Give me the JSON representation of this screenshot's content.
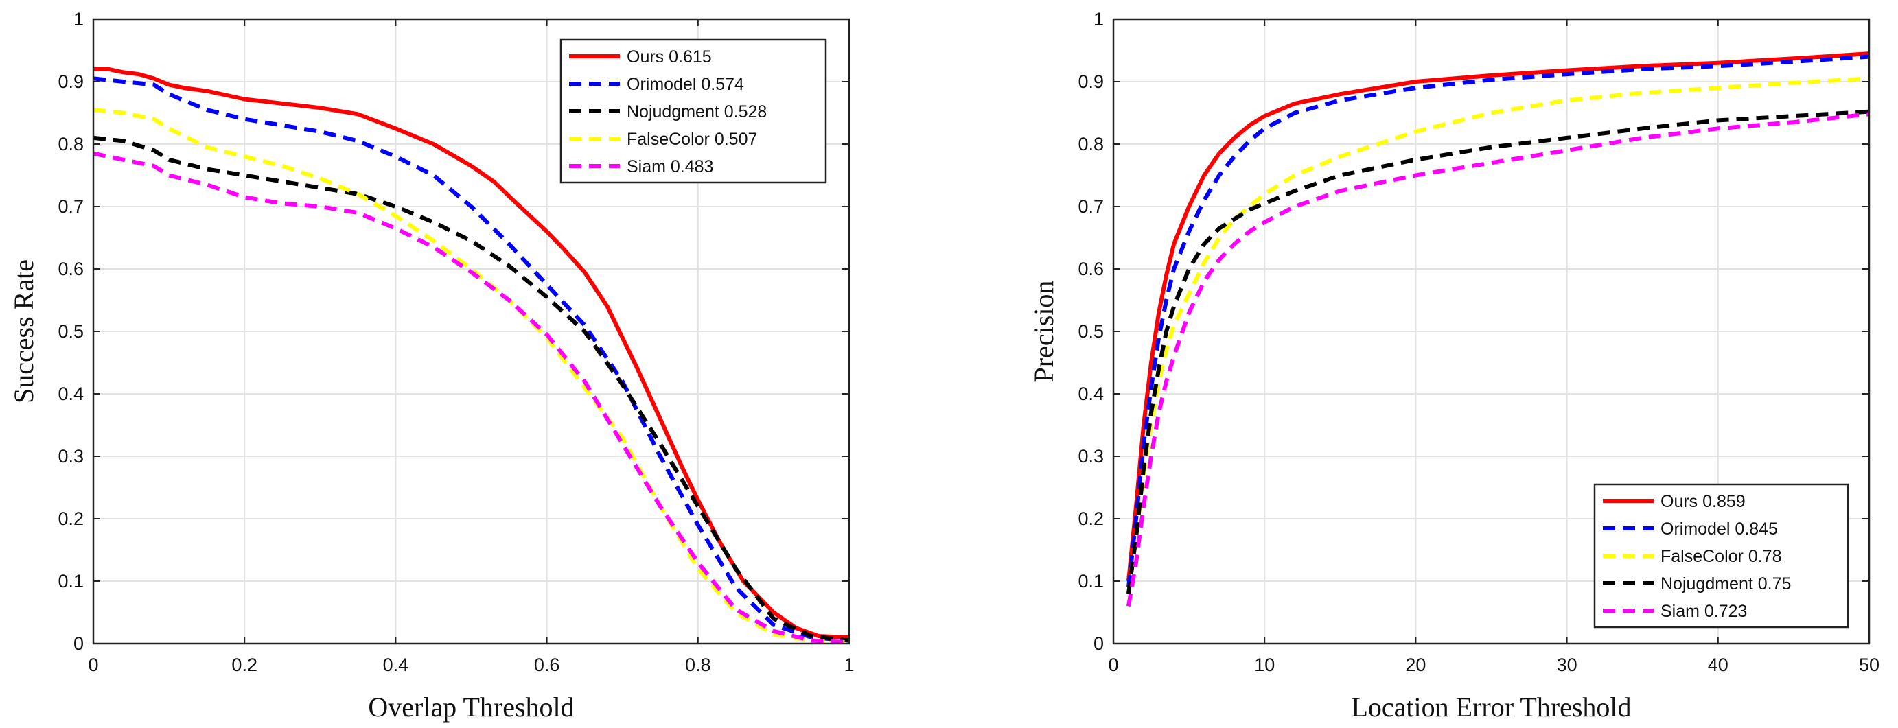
{
  "chart_data": [
    {
      "type": "line",
      "title": "",
      "xlabel": "Overlap Threshold",
      "ylabel": "Success Rate",
      "xlim": [
        0,
        1
      ],
      "ylim": [
        0,
        1
      ],
      "xticks": [
        0,
        0.2,
        0.4,
        0.6,
        0.8,
        1
      ],
      "xtick_labels": [
        "0",
        "0.2",
        "0.4",
        "0.6",
        "0.8",
        "1"
      ],
      "yticks": [
        0,
        0.1,
        0.2,
        0.3,
        0.4,
        0.5,
        0.6,
        0.7,
        0.8,
        0.9,
        1
      ],
      "ytick_labels": [
        "0",
        "0.1",
        "0.2",
        "0.3",
        "0.4",
        "0.5",
        "0.6",
        "0.7",
        "0.8",
        "0.9",
        "1"
      ],
      "grid": true,
      "legend_position": "top-right",
      "series": [
        {
          "name": "Ours",
          "score": "0.615",
          "color": "#ff0000",
          "dash": "solid",
          "x": [
            0,
            0.02,
            0.04,
            0.06,
            0.08,
            0.1,
            0.12,
            0.15,
            0.2,
            0.25,
            0.3,
            0.35,
            0.4,
            0.45,
            0.5,
            0.53,
            0.56,
            0.6,
            0.62,
            0.65,
            0.68,
            0.7,
            0.72,
            0.75,
            0.78,
            0.8,
            0.83,
            0.86,
            0.9,
            0.93,
            0.96,
            1.0
          ],
          "y": [
            0.92,
            0.92,
            0.915,
            0.912,
            0.905,
            0.895,
            0.89,
            0.885,
            0.872,
            0.865,
            0.858,
            0.848,
            0.825,
            0.8,
            0.765,
            0.74,
            0.705,
            0.66,
            0.635,
            0.595,
            0.54,
            0.49,
            0.44,
            0.36,
            0.28,
            0.23,
            0.16,
            0.1,
            0.05,
            0.025,
            0.012,
            0.01
          ]
        },
        {
          "name": "Orimodel",
          "score": "0.574",
          "color": "#0000ff",
          "dash": "dashed",
          "x": [
            0,
            0.04,
            0.08,
            0.1,
            0.15,
            0.2,
            0.25,
            0.3,
            0.35,
            0.4,
            0.45,
            0.5,
            0.55,
            0.6,
            0.65,
            0.7,
            0.75,
            0.8,
            0.85,
            0.9,
            0.95,
            1.0
          ],
          "y": [
            0.905,
            0.9,
            0.895,
            0.88,
            0.855,
            0.84,
            0.83,
            0.82,
            0.805,
            0.78,
            0.75,
            0.7,
            0.64,
            0.575,
            0.51,
            0.42,
            0.3,
            0.19,
            0.09,
            0.03,
            0.01,
            0.005
          ]
        },
        {
          "name": "Nojudgment",
          "score": "0.528",
          "color": "#000000",
          "dash": "dashed",
          "x": [
            0,
            0.04,
            0.08,
            0.1,
            0.15,
            0.2,
            0.25,
            0.3,
            0.35,
            0.4,
            0.45,
            0.5,
            0.55,
            0.6,
            0.65,
            0.7,
            0.75,
            0.8,
            0.85,
            0.9,
            0.95,
            1.0
          ],
          "y": [
            0.81,
            0.805,
            0.79,
            0.775,
            0.76,
            0.75,
            0.74,
            0.73,
            0.72,
            0.7,
            0.675,
            0.645,
            0.605,
            0.555,
            0.5,
            0.415,
            0.32,
            0.22,
            0.12,
            0.04,
            0.012,
            0.005
          ]
        },
        {
          "name": "FalseColor",
          "score": "0.507",
          "color": "#ffff00",
          "dash": "dashed",
          "x": [
            0,
            0.04,
            0.08,
            0.1,
            0.15,
            0.2,
            0.25,
            0.3,
            0.35,
            0.4,
            0.45,
            0.5,
            0.55,
            0.6,
            0.65,
            0.7,
            0.75,
            0.8,
            0.85,
            0.9,
            0.95,
            1.0
          ],
          "y": [
            0.855,
            0.85,
            0.84,
            0.825,
            0.795,
            0.78,
            0.765,
            0.745,
            0.72,
            0.685,
            0.645,
            0.6,
            0.55,
            0.49,
            0.41,
            0.33,
            0.22,
            0.12,
            0.05,
            0.015,
            0.005,
            0.002
          ]
        },
        {
          "name": "Siam",
          "score": "0.483",
          "color": "#ff00ff",
          "dash": "dashed",
          "x": [
            0,
            0.04,
            0.08,
            0.1,
            0.15,
            0.2,
            0.25,
            0.3,
            0.35,
            0.4,
            0.45,
            0.5,
            0.55,
            0.6,
            0.65,
            0.7,
            0.75,
            0.8,
            0.85,
            0.9,
            0.95,
            1.0
          ],
          "y": [
            0.785,
            0.775,
            0.765,
            0.75,
            0.735,
            0.715,
            0.705,
            0.7,
            0.69,
            0.665,
            0.635,
            0.595,
            0.55,
            0.495,
            0.42,
            0.32,
            0.22,
            0.13,
            0.055,
            0.02,
            0.005,
            0.002
          ]
        }
      ]
    },
    {
      "type": "line",
      "title": "",
      "xlabel": "Location Error Threshold",
      "ylabel": "Precision",
      "xlim": [
        0,
        50
      ],
      "ylim": [
        0,
        1
      ],
      "xticks": [
        0,
        10,
        20,
        30,
        40,
        50
      ],
      "xtick_labels": [
        "0",
        "10",
        "20",
        "30",
        "40",
        "50"
      ],
      "yticks": [
        0,
        0.1,
        0.2,
        0.3,
        0.4,
        0.5,
        0.6,
        0.7,
        0.8,
        0.9,
        1
      ],
      "ytick_labels": [
        "0",
        "0.1",
        "0.2",
        "0.3",
        "0.4",
        "0.5",
        "0.6",
        "0.7",
        "0.8",
        "0.9",
        "1"
      ],
      "grid": true,
      "legend_position": "bottom-right",
      "series": [
        {
          "name": "Ours",
          "score": "0.859",
          "color": "#ff0000",
          "dash": "solid",
          "x": [
            1,
            1.5,
            2,
            2.5,
            3,
            3.5,
            4,
            5,
            6,
            7,
            8,
            9,
            10,
            12,
            15,
            20,
            25,
            30,
            35,
            40,
            45,
            50
          ],
          "y": [
            0.1,
            0.22,
            0.35,
            0.45,
            0.53,
            0.59,
            0.64,
            0.7,
            0.75,
            0.785,
            0.81,
            0.83,
            0.845,
            0.865,
            0.88,
            0.9,
            0.91,
            0.918,
            0.925,
            0.93,
            0.937,
            0.945
          ]
        },
        {
          "name": "Orimodel",
          "score": "0.845",
          "color": "#0000ff",
          "dash": "dashed",
          "x": [
            1,
            1.5,
            2,
            2.5,
            3,
            3.5,
            4,
            5,
            6,
            7,
            8,
            9,
            10,
            12,
            15,
            20,
            25,
            30,
            35,
            40,
            45,
            50
          ],
          "y": [
            0.09,
            0.2,
            0.32,
            0.41,
            0.49,
            0.55,
            0.6,
            0.66,
            0.71,
            0.75,
            0.78,
            0.805,
            0.825,
            0.85,
            0.87,
            0.89,
            0.903,
            0.912,
            0.92,
            0.925,
            0.932,
            0.94
          ]
        },
        {
          "name": "FalseColor",
          "score": "0.78",
          "color": "#ffff00",
          "dash": "dashed",
          "x": [
            1,
            1.5,
            2,
            2.5,
            3,
            3.5,
            4,
            5,
            6,
            7,
            8,
            9,
            10,
            12,
            15,
            20,
            25,
            30,
            35,
            40,
            45,
            50
          ],
          "y": [
            0.08,
            0.17,
            0.27,
            0.35,
            0.42,
            0.47,
            0.51,
            0.56,
            0.61,
            0.65,
            0.68,
            0.7,
            0.72,
            0.75,
            0.78,
            0.82,
            0.85,
            0.87,
            0.882,
            0.89,
            0.898,
            0.905
          ]
        },
        {
          "name": "Nojugdment",
          "score": "0.75",
          "color": "#000000",
          "dash": "dashed",
          "x": [
            1,
            1.5,
            2,
            2.5,
            3,
            3.5,
            4,
            5,
            6,
            7,
            8,
            9,
            10,
            12,
            15,
            20,
            25,
            30,
            35,
            40,
            45,
            50
          ],
          "y": [
            0.08,
            0.17,
            0.28,
            0.37,
            0.44,
            0.5,
            0.54,
            0.6,
            0.64,
            0.665,
            0.68,
            0.695,
            0.705,
            0.725,
            0.75,
            0.775,
            0.795,
            0.81,
            0.825,
            0.838,
            0.845,
            0.852
          ]
        },
        {
          "name": "Siam",
          "score": "0.723",
          "color": "#ff00ff",
          "dash": "dashed",
          "x": [
            1,
            1.5,
            2,
            2.5,
            3,
            3.5,
            4,
            5,
            6,
            7,
            8,
            9,
            10,
            12,
            15,
            20,
            25,
            30,
            35,
            40,
            45,
            50
          ],
          "y": [
            0.06,
            0.13,
            0.22,
            0.3,
            0.37,
            0.42,
            0.46,
            0.53,
            0.58,
            0.615,
            0.64,
            0.66,
            0.675,
            0.7,
            0.725,
            0.75,
            0.77,
            0.79,
            0.81,
            0.825,
            0.835,
            0.848
          ]
        }
      ]
    }
  ]
}
